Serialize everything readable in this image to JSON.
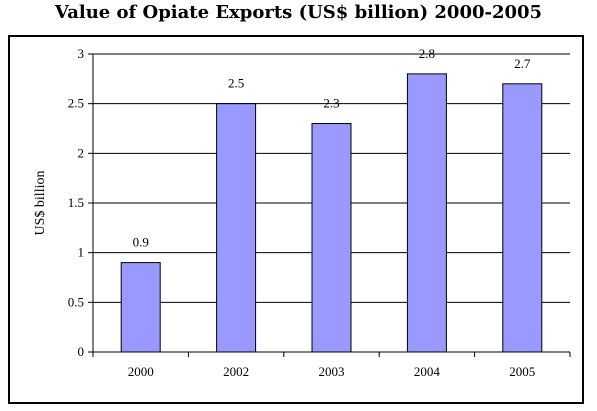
{
  "chart_data": {
    "type": "bar",
    "title": "Value of Opiate Exports (US$ billion) 2000-2005",
    "ylabel": "US$ billion",
    "xlabel": "",
    "categories": [
      "2000",
      "2002",
      "2003",
      "2004",
      "2005"
    ],
    "values": [
      0.9,
      2.5,
      2.3,
      2.8,
      2.7
    ],
    "value_labels": [
      "0.9",
      "2.5",
      "2.3",
      "2.8",
      "2.7"
    ],
    "ylim": [
      0,
      3
    ],
    "yticks": [
      0,
      0.5,
      1,
      1.5,
      2,
      2.5,
      3
    ],
    "ytick_labels": [
      "0",
      "0.5",
      "1",
      "1.5",
      "2",
      "2.5",
      "3"
    ],
    "grid": "horizontal",
    "legend": "none",
    "bar_color": "#9999ff",
    "bar_stroke": "#000000"
  }
}
